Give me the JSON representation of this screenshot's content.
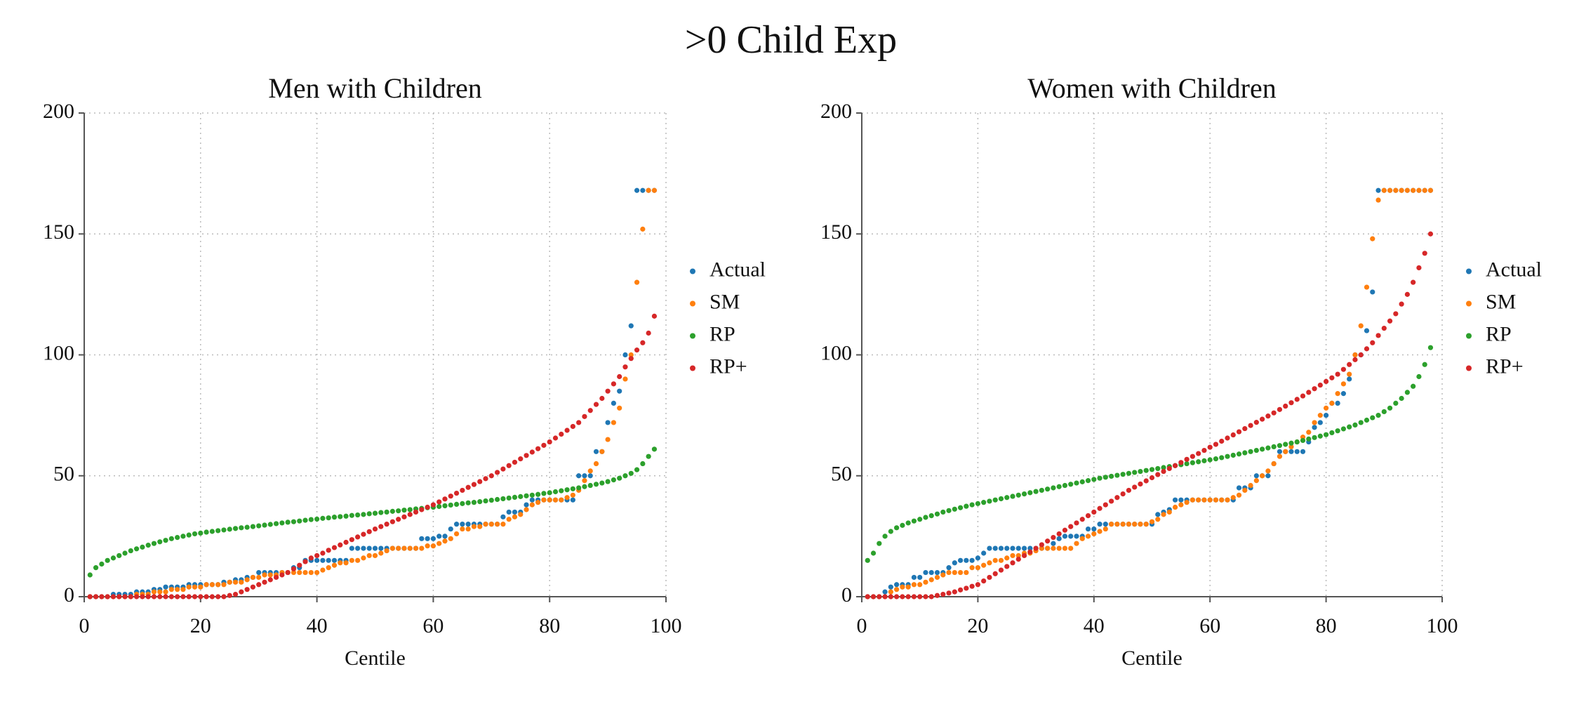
{
  "title": ">0 Child Exp",
  "chart_data": [
    {
      "type": "scatter",
      "title": "Men with Children",
      "x_label": "Centile",
      "xlim": [
        0,
        100
      ],
      "ylim": [
        0,
        200
      ],
      "xticks": [
        0,
        20,
        40,
        60,
        80,
        100
      ],
      "yticks": [
        0,
        50,
        100,
        150,
        200
      ],
      "grid": true,
      "legend": "right",
      "x": [
        1,
        2,
        3,
        4,
        5,
        6,
        7,
        8,
        9,
        10,
        11,
        12,
        13,
        14,
        15,
        16,
        17,
        18,
        19,
        20,
        21,
        22,
        23,
        24,
        25,
        26,
        27,
        28,
        29,
        30,
        31,
        32,
        33,
        34,
        35,
        36,
        37,
        38,
        39,
        40,
        41,
        42,
        43,
        44,
        45,
        46,
        47,
        48,
        49,
        50,
        51,
        52,
        53,
        54,
        55,
        56,
        57,
        58,
        59,
        60,
        61,
        62,
        63,
        64,
        65,
        66,
        67,
        68,
        69,
        70,
        71,
        72,
        73,
        74,
        75,
        76,
        77,
        78,
        79,
        80,
        81,
        82,
        83,
        84,
        85,
        86,
        87,
        88,
        89,
        90,
        91,
        92,
        93,
        94,
        95,
        96,
        97,
        98
      ],
      "series": [
        {
          "name": "Actual",
          "color": "#1f77b4",
          "values": [
            0,
            0,
            0,
            0,
            1,
            1,
            1,
            1,
            2,
            2,
            2,
            3,
            3,
            4,
            4,
            4,
            4,
            5,
            5,
            5,
            5,
            5,
            5,
            6,
            6,
            7,
            7,
            8,
            8,
            10,
            10,
            10,
            10,
            10,
            10,
            12,
            12,
            15,
            15,
            15,
            15,
            15,
            15,
            15,
            15,
            20,
            20,
            20,
            20,
            20,
            20,
            20,
            20,
            20,
            20,
            20,
            20,
            24,
            24,
            24,
            25,
            25,
            28,
            30,
            30,
            30,
            30,
            30,
            30,
            30,
            30,
            33,
            35,
            35,
            35,
            38,
            40,
            40,
            40,
            40,
            40,
            40,
            40,
            40,
            50,
            50,
            50,
            60,
            60,
            72,
            80,
            85,
            100,
            112,
            168,
            168,
            168,
            168
          ]
        },
        {
          "name": "SM",
          "color": "#ff7f0e",
          "values": [
            0,
            0,
            0,
            0,
            0,
            0,
            0,
            0,
            1,
            1,
            1,
            2,
            2,
            2,
            3,
            3,
            3,
            4,
            4,
            4,
            5,
            5,
            5,
            5,
            6,
            6,
            6,
            7,
            8,
            8,
            9,
            9,
            9,
            10,
            10,
            10,
            10,
            10,
            10,
            10,
            11,
            12,
            13,
            14,
            14,
            15,
            15,
            16,
            17,
            17,
            18,
            19,
            20,
            20,
            20,
            20,
            20,
            20,
            21,
            21,
            22,
            23,
            24,
            26,
            28,
            28,
            29,
            29,
            30,
            30,
            30,
            30,
            32,
            33,
            34,
            36,
            38,
            39,
            40,
            40,
            40,
            40,
            41,
            42,
            44,
            48,
            52,
            55,
            60,
            65,
            72,
            78,
            90,
            100,
            130,
            152,
            168,
            168
          ]
        },
        {
          "name": "RP",
          "color": "#2ca02c",
          "values": [
            9,
            12,
            13.5,
            15,
            16,
            17,
            18,
            19,
            19.8,
            20.5,
            21.3,
            22,
            22.7,
            23.3,
            24,
            24.5,
            25,
            25.5,
            26,
            26.3,
            26.7,
            27,
            27.3,
            27.6,
            27.9,
            28.2,
            28.5,
            28.7,
            29,
            29.3,
            29.6,
            29.9,
            30.2,
            30.5,
            30.8,
            31,
            31.3,
            31.6,
            31.9,
            32.1,
            32.4,
            32.6,
            32.9,
            33.1,
            33.3,
            33.6,
            33.8,
            34,
            34.3,
            34.5,
            34.8,
            35,
            35.3,
            35.5,
            35.8,
            36,
            36.3,
            36.5,
            36.8,
            37,
            37.3,
            37.6,
            37.9,
            38.2,
            38.5,
            38.8,
            39,
            39.3,
            39.6,
            39.9,
            40.2,
            40.5,
            40.8,
            41.1,
            41.4,
            41.7,
            42,
            42.3,
            42.7,
            43,
            43.4,
            43.8,
            44.2,
            44.6,
            45,
            45.5,
            46,
            46.5,
            47,
            47.6,
            48.3,
            49,
            50,
            51,
            52.5,
            55,
            58,
            61
          ]
        },
        {
          "name": "RP+",
          "color": "#d62728",
          "values": [
            0,
            0,
            0,
            0,
            0,
            0,
            0,
            0,
            0,
            0,
            0,
            0,
            0,
            0,
            0,
            0,
            0,
            0,
            0,
            0,
            0,
            0,
            0,
            0,
            0.5,
            1,
            2,
            3,
            4,
            5,
            6,
            7,
            8,
            9,
            10,
            11.5,
            13,
            14.5,
            16,
            17,
            18,
            19.2,
            20.3,
            21.4,
            22.5,
            23.6,
            24.7,
            25.8,
            26.9,
            28,
            29,
            30,
            31,
            32,
            33,
            34,
            35,
            36,
            37,
            38,
            39.2,
            40.4,
            41.6,
            42.8,
            44,
            45.2,
            46.4,
            47.6,
            48.8,
            50,
            51.4,
            52.8,
            54.2,
            55.6,
            57,
            58.4,
            59.8,
            61.2,
            62.6,
            64,
            65.6,
            67.2,
            68.8,
            70.4,
            72,
            74.5,
            77,
            79.5,
            82,
            85,
            88,
            91,
            95,
            98.5,
            102,
            105,
            109,
            116
          ]
        }
      ]
    },
    {
      "type": "scatter",
      "title": "Women with Children",
      "x_label": "Centile",
      "xlim": [
        0,
        100
      ],
      "ylim": [
        0,
        200
      ],
      "xticks": [
        0,
        20,
        40,
        60,
        80,
        100
      ],
      "yticks": [
        0,
        50,
        100,
        150,
        200
      ],
      "grid": true,
      "legend": "right",
      "x": [
        1,
        2,
        3,
        4,
        5,
        6,
        7,
        8,
        9,
        10,
        11,
        12,
        13,
        14,
        15,
        16,
        17,
        18,
        19,
        20,
        21,
        22,
        23,
        24,
        25,
        26,
        27,
        28,
        29,
        30,
        31,
        32,
        33,
        34,
        35,
        36,
        37,
        38,
        39,
        40,
        41,
        42,
        43,
        44,
        45,
        46,
        47,
        48,
        49,
        50,
        51,
        52,
        53,
        54,
        55,
        56,
        57,
        58,
        59,
        60,
        61,
        62,
        63,
        64,
        65,
        66,
        67,
        68,
        69,
        70,
        71,
        72,
        73,
        74,
        75,
        76,
        77,
        78,
        79,
        80,
        81,
        82,
        83,
        84,
        85,
        86,
        87,
        88,
        89,
        90,
        91,
        92,
        93,
        94,
        95,
        96,
        97,
        98
      ],
      "series": [
        {
          "name": "Actual",
          "color": "#1f77b4",
          "values": [
            0,
            0,
            0,
            2,
            4,
            5,
            5,
            5,
            8,
            8,
            10,
            10,
            10,
            10,
            12,
            14,
            15,
            15,
            15,
            16,
            18,
            20,
            20,
            20,
            20,
            20,
            20,
            20,
            20,
            20,
            20,
            20,
            22,
            24,
            25,
            25,
            25,
            25,
            28,
            28,
            30,
            30,
            30,
            30,
            30,
            30,
            30,
            30,
            30,
            30,
            34,
            35,
            36,
            40,
            40,
            40,
            40,
            40,
            40,
            40,
            40,
            40,
            40,
            40,
            45,
            45,
            45,
            50,
            50,
            50,
            55,
            60,
            60,
            60,
            60,
            60,
            64,
            70,
            72,
            75,
            80,
            80,
            84,
            90,
            100,
            100,
            110,
            126,
            168,
            168,
            168,
            168,
            168,
            168,
            168,
            168,
            168,
            168
          ]
        },
        {
          "name": "SM",
          "color": "#ff7f0e",
          "values": [
            0,
            0,
            0,
            0,
            2,
            3,
            4,
            4,
            5,
            5,
            6,
            7,
            8,
            9,
            10,
            10,
            10,
            10,
            12,
            12,
            13,
            14,
            15,
            15,
            16,
            17,
            17,
            18,
            18,
            19,
            20,
            20,
            20,
            20,
            20,
            20,
            22,
            24,
            25,
            26,
            27,
            28,
            30,
            30,
            30,
            30,
            30,
            30,
            30,
            31,
            32,
            34,
            35,
            37,
            38,
            39,
            40,
            40,
            40,
            40,
            40,
            40,
            40,
            41,
            42,
            44,
            46,
            48,
            50,
            52,
            55,
            58,
            60,
            62,
            64,
            66,
            68,
            72,
            75,
            78,
            80,
            84,
            88,
            92,
            100,
            112,
            128,
            148,
            164,
            168,
            168,
            168,
            168,
            168,
            168,
            168,
            168,
            168
          ]
        },
        {
          "name": "RP",
          "color": "#2ca02c",
          "values": [
            15,
            18,
            22,
            25,
            27,
            28.5,
            29.5,
            30.5,
            31.3,
            32,
            32.8,
            33.5,
            34.2,
            35,
            35.6,
            36.2,
            36.8,
            37.4,
            38,
            38.5,
            39,
            39.5,
            40,
            40.5,
            41,
            41.5,
            42,
            42.5,
            43,
            43.5,
            44,
            44.5,
            45,
            45.5,
            46,
            46.5,
            47,
            47.5,
            48,
            48.5,
            49,
            49.4,
            49.8,
            50.2,
            50.6,
            51,
            51.4,
            51.8,
            52.2,
            52.6,
            53,
            53.4,
            53.8,
            54.2,
            54.6,
            55,
            55.4,
            55.8,
            56.2,
            56.6,
            57,
            57.5,
            58,
            58.5,
            59,
            59.5,
            60,
            60.5,
            61,
            61.5,
            62,
            62.5,
            63,
            63.5,
            64,
            64.6,
            65.2,
            65.8,
            66.4,
            67,
            67.8,
            68.6,
            69.4,
            70.2,
            71,
            72,
            73,
            74,
            75,
            76.5,
            78,
            80,
            82,
            84.5,
            87,
            91,
            96,
            103
          ]
        },
        {
          "name": "RP+",
          "color": "#d62728",
          "values": [
            0,
            0,
            0,
            0,
            0,
            0,
            0,
            0,
            0,
            0,
            0,
            0,
            0.5,
            1,
            1.5,
            2,
            2.8,
            3.5,
            4.3,
            5,
            6.5,
            8,
            9.5,
            11,
            12.5,
            14,
            15.5,
            17,
            18.5,
            20,
            21.5,
            23,
            24.5,
            26,
            27.5,
            29,
            30.5,
            32,
            33.5,
            35,
            36.5,
            38,
            39.5,
            41,
            42.5,
            44,
            45.3,
            46.6,
            47.9,
            49.2,
            50.5,
            51.8,
            53,
            54.2,
            55.5,
            56.8,
            58,
            59.2,
            60.5,
            61.8,
            63,
            64.3,
            65.6,
            66.9,
            68.2,
            69.5,
            70.8,
            72.1,
            73.4,
            74.7,
            76,
            77.4,
            78.8,
            80.2,
            81.6,
            83,
            84.5,
            86,
            87.5,
            89,
            90.5,
            92,
            94,
            96,
            98,
            100,
            102.5,
            105,
            108,
            111,
            114,
            117,
            121,
            125,
            130,
            136,
            142,
            150
          ]
        }
      ]
    }
  ]
}
